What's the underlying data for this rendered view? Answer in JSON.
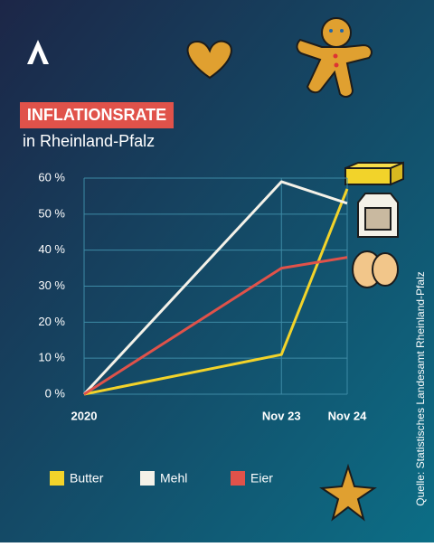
{
  "chart_data": {
    "type": "line",
    "title": "INFLATIONSRATE",
    "subtitle": "in Rheinland-Pfalz",
    "source": "Quelle: Statistisches Landesamt Rheinland-Pfalz",
    "x": [
      0,
      36,
      48
    ],
    "xlim": [
      0,
      48
    ],
    "xticks": [
      {
        "value": 0,
        "label": "2020"
      },
      {
        "value": 36,
        "label": "Nov 23"
      },
      {
        "value": 48,
        "label": "Nov 24"
      }
    ],
    "ylim": [
      0,
      60
    ],
    "yticks": [
      {
        "value": 0,
        "label": "0 %"
      },
      {
        "value": 10,
        "label": "10 %"
      },
      {
        "value": 20,
        "label": "20 %"
      },
      {
        "value": 30,
        "label": "30 %"
      },
      {
        "value": 40,
        "label": "40 %"
      },
      {
        "value": 50,
        "label": "50 %"
      },
      {
        "value": 60,
        "label": "60 %"
      }
    ],
    "grid": true,
    "series": [
      {
        "name": "Butter",
        "color": "#f2d32a",
        "values": [
          0,
          11,
          57
        ]
      },
      {
        "name": "Mehl",
        "color": "#f4f1e8",
        "values": [
          0,
          59,
          53
        ]
      },
      {
        "name": "Eier",
        "color": "#e0524a",
        "values": [
          0,
          35,
          38
        ]
      }
    ]
  }
}
